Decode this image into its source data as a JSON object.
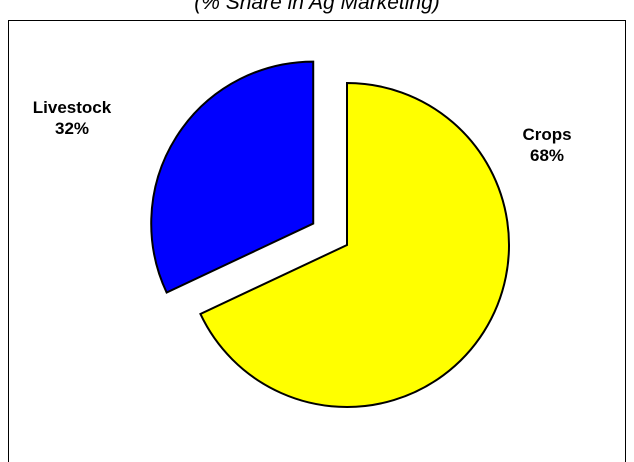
{
  "chart_data": {
    "type": "pie",
    "subtitle": "(% Share in Ag Marketing)",
    "slices": [
      {
        "label": "Crops",
        "value": 68,
        "value_label": "68%",
        "color": "#ffff00"
      },
      {
        "label": "Livestock",
        "value": 32,
        "value_label": "32%",
        "color": "#0000ff",
        "exploded": true
      }
    ],
    "legend": "none",
    "outline_color": "#000000"
  }
}
